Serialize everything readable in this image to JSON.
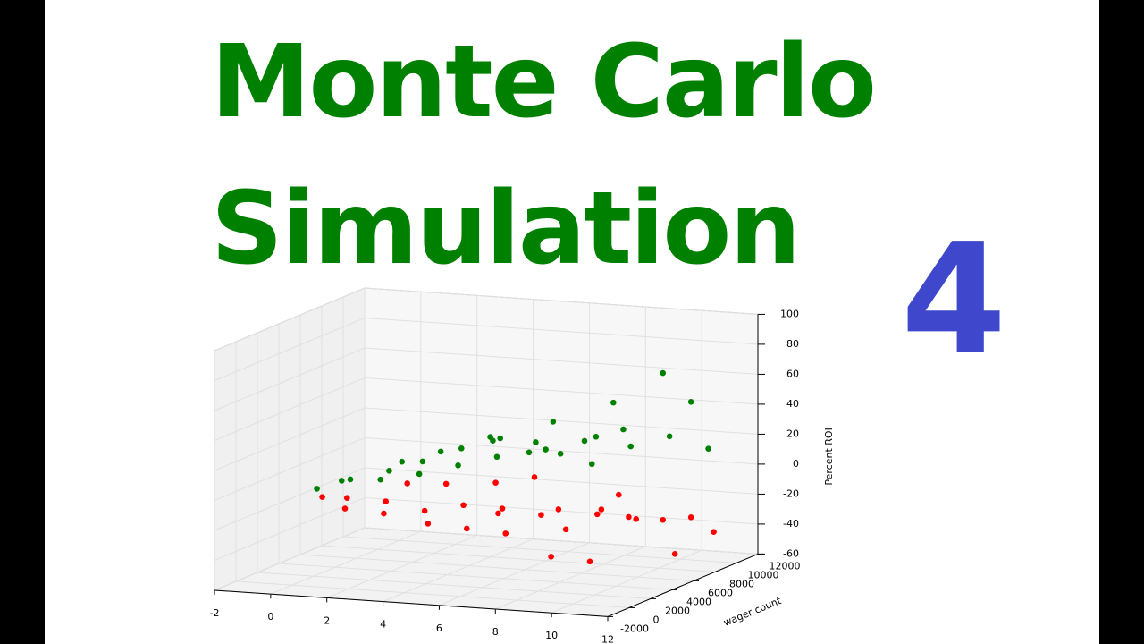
{
  "header": {
    "title_line1": "Monte Carlo",
    "title_line2": "Simulation",
    "episode": "4"
  },
  "chart_data": {
    "type": "scatter3d",
    "ylabel": "wager count",
    "zlabel": "Percent ROI",
    "xlim": [
      -2,
      12
    ],
    "ylim": [
      -2000,
      12000
    ],
    "zlim": [
      -60,
      100
    ],
    "xticks": [
      -2,
      0,
      2,
      4,
      6,
      8,
      10,
      12
    ],
    "yticks": [
      -2000,
      0,
      2000,
      4000,
      6000,
      8000,
      10000,
      12000
    ],
    "zticks": [
      -60,
      -40,
      -20,
      0,
      20,
      40,
      60,
      80,
      100
    ],
    "grid": true,
    "series": [
      {
        "color": "#ff0000",
        "x": [
          0.5,
          1,
          1.5,
          2,
          2,
          2.5,
          3,
          3,
          3.5,
          4,
          4,
          4.5,
          5,
          5,
          5.5,
          6,
          6,
          6.5,
          7,
          7,
          7.5,
          8,
          8,
          8.5,
          9,
          9,
          9.5,
          10,
          10,
          11
        ],
        "y": [
          1500,
          2500,
          1000,
          3500,
          5500,
          2000,
          4500,
          6500,
          3500,
          5500,
          8500,
          4500,
          6500,
          9500,
          5500,
          7500,
          3500,
          8500,
          6500,
          10500,
          4500,
          9500,
          7500,
          5500,
          8500,
          11000,
          6500,
          9500,
          11000,
          10500
        ],
        "z": [
          -5,
          -8,
          -10,
          -12,
          -6,
          -15,
          -20,
          -8,
          -25,
          -18,
          -12,
          -30,
          -22,
          -10,
          -35,
          -28,
          -15,
          -40,
          -20,
          -32,
          -45,
          -18,
          -25,
          -50,
          -30,
          -38,
          -22,
          -55,
          -35,
          -42
        ]
      },
      {
        "color": "#008000",
        "x": [
          0.5,
          1,
          1.5,
          2,
          2,
          2.5,
          3,
          3,
          3.5,
          4,
          4,
          4.5,
          5,
          5,
          5.5,
          6,
          6,
          6.5,
          7,
          7,
          7.5,
          8,
          8,
          8.5,
          9,
          9,
          9.5,
          10,
          10,
          11
        ],
        "y": [
          1000,
          2000,
          1500,
          3000,
          5000,
          2500,
          4000,
          6000,
          3000,
          5000,
          8000,
          4000,
          6000,
          9000,
          5000,
          7000,
          3000,
          8000,
          6000,
          10000,
          4000,
          9000,
          7000,
          5000,
          8000,
          11000,
          6000,
          9000,
          11000,
          10000
        ],
        "z": [
          2,
          5,
          8,
          4,
          10,
          12,
          6,
          15,
          18,
          10,
          20,
          25,
          14,
          8,
          30,
          22,
          35,
          12,
          40,
          18,
          28,
          45,
          10,
          32,
          20,
          60,
          38,
          25,
          42,
          15
        ]
      }
    ]
  }
}
